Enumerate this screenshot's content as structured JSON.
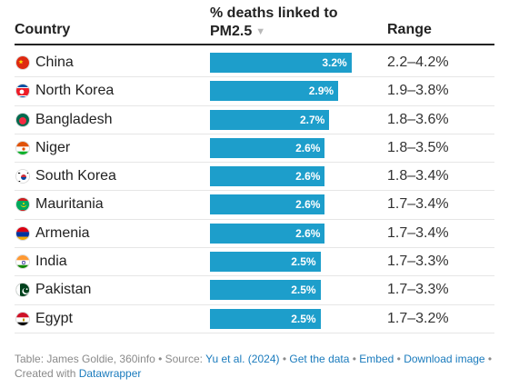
{
  "header": {
    "country_label": "Country",
    "metric_label_line1": "% deaths linked to",
    "metric_label_line2": "PM2.5",
    "sort_icon": "▼",
    "range_label": "Range"
  },
  "chart_data": {
    "type": "bar",
    "orientation": "horizontal",
    "bar_color": "#1d9ecb",
    "xlim": [
      0,
      3.7
    ],
    "rows": [
      {
        "country": "China",
        "value": 3.2,
        "label": "3.2%",
        "range": "2.2–4.2%",
        "flag": "china"
      },
      {
        "country": "North Korea",
        "value": 2.9,
        "label": "2.9%",
        "range": "1.9–3.8%",
        "flag": "north-korea"
      },
      {
        "country": "Bangladesh",
        "value": 2.7,
        "label": "2.7%",
        "range": "1.8–3.6%",
        "flag": "bangladesh"
      },
      {
        "country": "Niger",
        "value": 2.6,
        "label": "2.6%",
        "range": "1.8–3.5%",
        "flag": "niger"
      },
      {
        "country": "South Korea",
        "value": 2.6,
        "label": "2.6%",
        "range": "1.8–3.4%",
        "flag": "south-korea"
      },
      {
        "country": "Mauritania",
        "value": 2.6,
        "label": "2.6%",
        "range": "1.7–3.4%",
        "flag": "mauritania"
      },
      {
        "country": "Armenia",
        "value": 2.6,
        "label": "2.6%",
        "range": "1.7–3.4%",
        "flag": "armenia"
      },
      {
        "country": "India",
        "value": 2.5,
        "label": "2.5%",
        "range": "1.7–3.3%",
        "flag": "india"
      },
      {
        "country": "Pakistan",
        "value": 2.5,
        "label": "2.5%",
        "range": "1.7–3.3%",
        "flag": "pakistan"
      },
      {
        "country": "Egypt",
        "value": 2.5,
        "label": "2.5%",
        "range": "1.7–3.2%",
        "flag": "egypt"
      }
    ]
  },
  "footer": {
    "source_prefix": "Table: James Goldie, 360info • Source: ",
    "source_link": "Yu et al. (2024)",
    "sep": " • ",
    "get_data": "Get the data",
    "embed": "Embed",
    "download": "Download image",
    "created_prefix": "Created with ",
    "datawrapper": "Datawrapper"
  }
}
